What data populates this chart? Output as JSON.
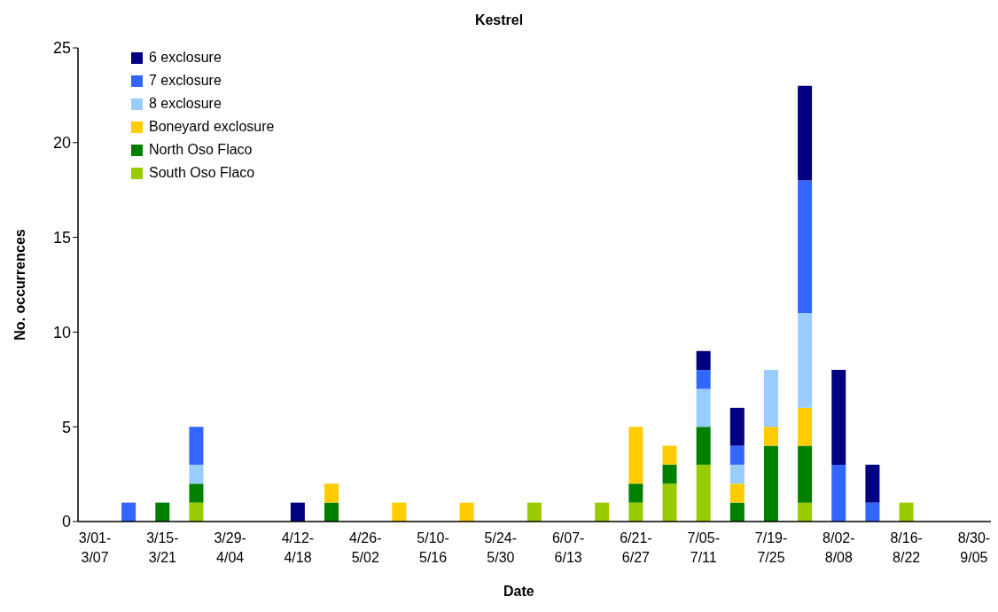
{
  "chart_data": {
    "type": "bar",
    "title": "Kestrel",
    "xlabel": "Date",
    "ylabel": "No. occurrences",
    "categories": [
      "3/01-3/07",
      null,
      "3/15-3/21",
      null,
      "3/29-4/04",
      null,
      "4/12-4/18",
      null,
      "4/26-5/02",
      null,
      "5/10-5/16",
      null,
      "5/24-5/30",
      null,
      "6/07-6/13",
      null,
      "6/21-6/27",
      null,
      "7/05-7/11",
      null,
      "7/19-7/25",
      null,
      "8/02-8/08",
      null,
      "8/16-8/22",
      null,
      "8/30-9/05"
    ],
    "stacked": true,
    "series": [
      {
        "name": "South Oso Flaco",
        "color": "#99cc00",
        "values": [
          0,
          0,
          0,
          1,
          0,
          0,
          0,
          0,
          0,
          0,
          0,
          0,
          0,
          1,
          0,
          1,
          1,
          2,
          3,
          0,
          0,
          1,
          0,
          0,
          1,
          0,
          0
        ]
      },
      {
        "name": "North Oso Flaco",
        "color": "#008000",
        "values": [
          0,
          0,
          1,
          1,
          0,
          0,
          0,
          1,
          0,
          0,
          0,
          0,
          0,
          0,
          0,
          0,
          1,
          1,
          2,
          1,
          4,
          3,
          0,
          0,
          0,
          0,
          0
        ]
      },
      {
        "name": "Boneyard exclosure",
        "color": "#ffcc00",
        "values": [
          0,
          0,
          0,
          0,
          0,
          0,
          0,
          1,
          0,
          1,
          0,
          1,
          0,
          0,
          0,
          0,
          3,
          1,
          0,
          1,
          1,
          2,
          0,
          0,
          0,
          0,
          0
        ]
      },
      {
        "name": "8 exclosure",
        "color": "#99ccff",
        "values": [
          0,
          0,
          0,
          1,
          0,
          0,
          0,
          0,
          0,
          0,
          0,
          0,
          0,
          0,
          0,
          0,
          0,
          0,
          2,
          1,
          3,
          5,
          0,
          0,
          0,
          0,
          0
        ]
      },
      {
        "name": "7 exclosure",
        "color": "#3366ff",
        "values": [
          0,
          1,
          0,
          2,
          0,
          0,
          0,
          0,
          0,
          0,
          0,
          0,
          0,
          0,
          0,
          0,
          0,
          0,
          1,
          1,
          0,
          7,
          3,
          1,
          0,
          0,
          0
        ]
      },
      {
        "name": "6 exclosure",
        "color": "#000080",
        "values": [
          0,
          0,
          0,
          0,
          0,
          0,
          1,
          0,
          0,
          0,
          0,
          0,
          0,
          0,
          0,
          0,
          0,
          0,
          1,
          2,
          0,
          5,
          5,
          2,
          0,
          0,
          0
        ]
      }
    ],
    "ylim": [
      0,
      25
    ],
    "yticks": [
      0,
      5,
      10,
      15,
      20,
      25
    ],
    "grid": false,
    "legend": "top left"
  }
}
